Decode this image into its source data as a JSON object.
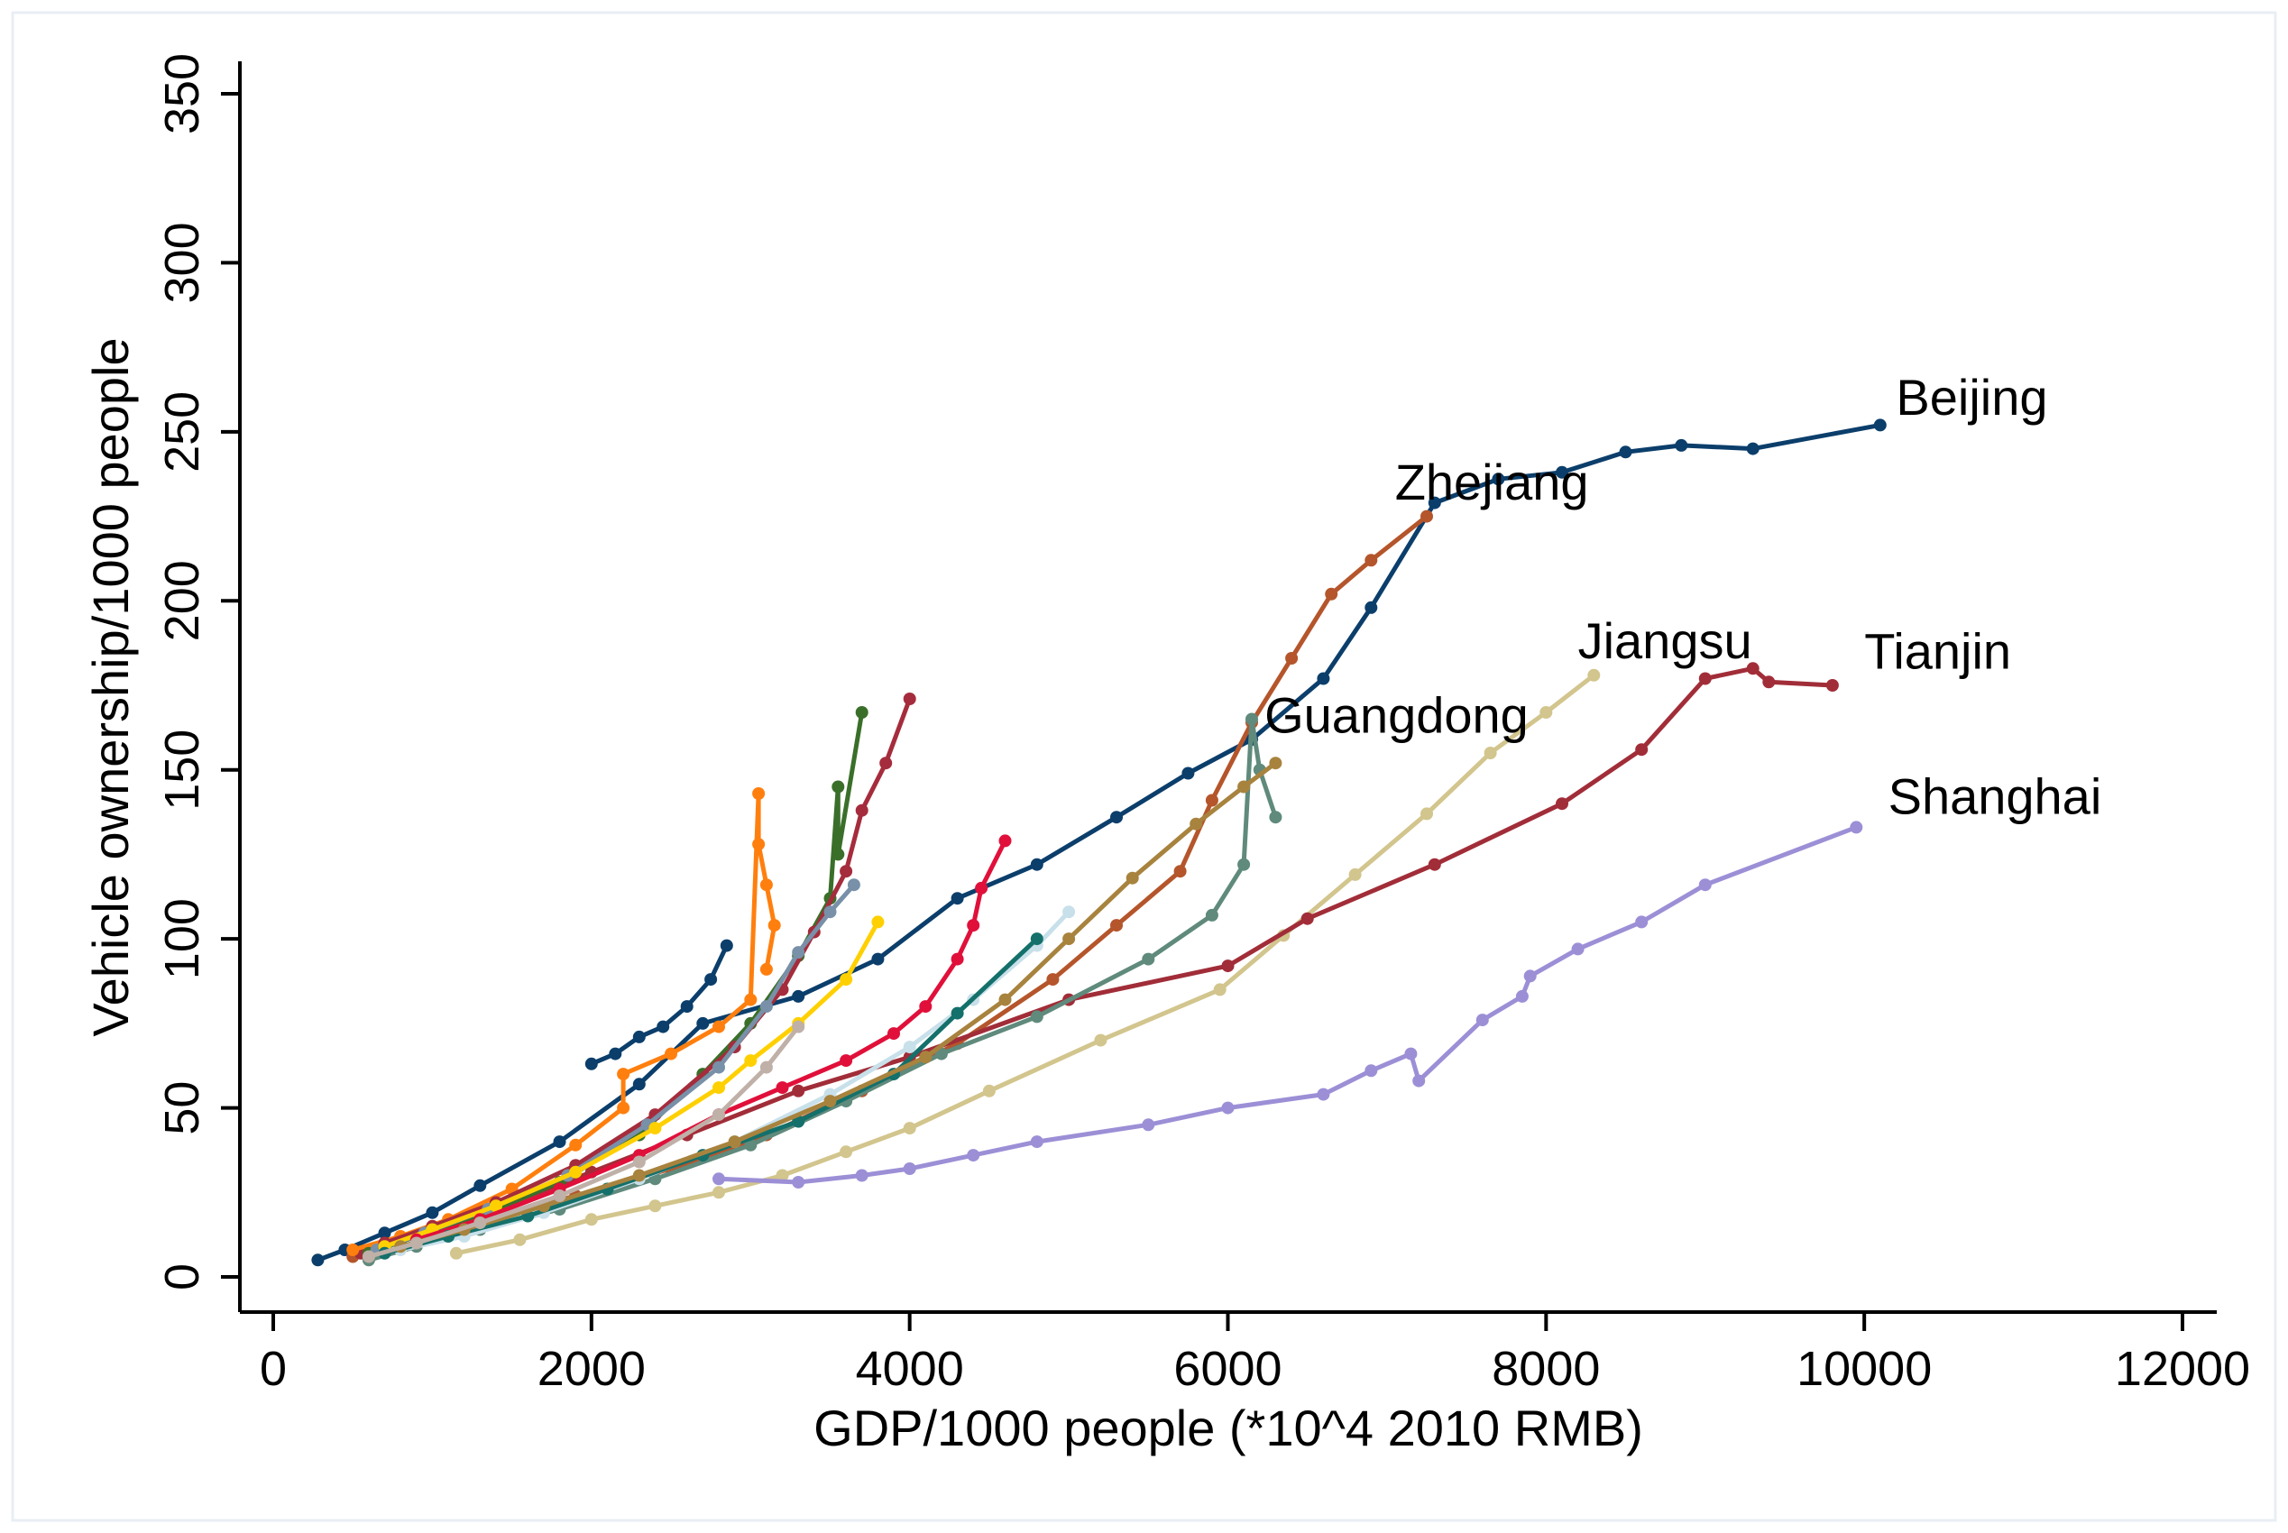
{
  "chart_data": {
    "type": "line",
    "title": "",
    "xlabel": "GDP/1000 people (*10^4 2010 RMB)",
    "ylabel": "Vehicle ownership/1000 people",
    "xlim": [
      0,
      12000
    ],
    "ylim": [
      0,
      350
    ],
    "xticks": [
      "0",
      "2000",
      "4000",
      "6000",
      "8000",
      "10000",
      "12000"
    ],
    "yticks": [
      "0",
      "50",
      "100",
      "150",
      "200",
      "250",
      "300",
      "350"
    ],
    "grid": false,
    "legend": "none",
    "series": [
      {
        "name": "Beijing",
        "color": "#0b3e6b",
        "label_at": [
          10200,
          255
        ],
        "x": [
          280,
          450,
          700,
          1000,
          1300,
          1800,
          2300,
          2700,
          3300,
          3800,
          4300,
          4800,
          5300,
          5750,
          6150,
          6600,
          6900,
          7300,
          7700,
          8100,
          8500,
          8850,
          9300,
          10100
        ],
        "y": [
          5,
          8,
          13,
          19,
          27,
          40,
          57,
          75,
          83,
          94,
          112,
          122,
          136,
          149,
          159,
          177,
          198,
          229,
          236,
          238,
          244,
          246,
          245,
          252
        ]
      },
      {
        "name": "Zhejiang",
        "color": "#b5552b",
        "label_at": [
          7050,
          230
        ],
        "x": [
          500,
          700,
          1000,
          1400,
          1900,
          2500,
          3100,
          3700,
          4300,
          4900,
          5300,
          5700,
          5900,
          6150,
          6400,
          6650,
          6900,
          7250
        ],
        "y": [
          6,
          10,
          14,
          18,
          24,
          32,
          42,
          55,
          69,
          88,
          104,
          120,
          141,
          164,
          183,
          202,
          212,
          225
        ]
      },
      {
        "name": "Jiangsu",
        "color": "#d2c58d",
        "label_at": [
          8200,
          183
        ],
        "x": [
          1150,
          1550,
          2000,
          2400,
          2800,
          3200,
          3600,
          4000,
          4500,
          5200,
          5950,
          6350,
          6800,
          7250,
          7650,
          8000,
          8300
        ],
        "y": [
          7,
          11,
          17,
          21,
          25,
          30,
          37,
          44,
          55,
          70,
          85,
          101,
          119,
          137,
          155,
          167,
          178
        ]
      },
      {
        "name": "Tianjin",
        "color": "#a12d38",
        "label_at": [
          10000,
          180
        ],
        "x": [
          550,
          800,
          1100,
          1500,
          2000,
          2600,
          3300,
          4000,
          5000,
          6000,
          6500,
          7300,
          8100,
          8600,
          9000,
          9300,
          9400,
          9800
        ],
        "y": [
          7,
          11,
          16,
          22,
          31,
          42,
          55,
          65,
          82,
          92,
          106,
          122,
          140,
          156,
          177,
          180,
          176,
          175
        ]
      },
      {
        "name": "Guangdong",
        "color": "#5f8a7c",
        "label_at": [
          6230,
          161
        ],
        "x": [
          600,
          900,
          1300,
          1800,
          2400,
          3000,
          3600,
          4200,
          4800,
          5500,
          5900,
          6100,
          6150,
          6200,
          6300
        ],
        "y": [
          5,
          9,
          14,
          20,
          29,
          39,
          52,
          66,
          77,
          94,
          107,
          122,
          165,
          150,
          136
        ]
      },
      {
        "name": "Shanghai",
        "color": "#9c8fd6",
        "label_at": [
          10150,
          137
        ],
        "x": [
          2800,
          3300,
          3700,
          4000,
          4400,
          4800,
          5500,
          6000,
          6600,
          6900,
          7150,
          7200,
          7600,
          7850,
          7900,
          8200,
          8600,
          9000,
          9950
        ],
        "y": [
          29,
          28,
          30,
          32,
          36,
          40,
          45,
          50,
          54,
          61,
          66,
          58,
          76,
          83,
          89,
          97,
          105,
          116,
          133
        ]
      },
      {
        "name": "",
        "color": "#0b3e6b",
        "x": [
          2000,
          2150,
          2300,
          2450,
          2600,
          2750,
          2850
        ],
        "y": [
          63,
          66,
          71,
          74,
          80,
          88,
          98
        ]
      },
      {
        "name": "",
        "color": "#ff7f0e",
        "x": [
          500,
          800,
          1100,
          1500,
          1900,
          2200,
          2200,
          2500,
          2800,
          3000,
          3050,
          3050,
          3100,
          3150,
          3100
        ],
        "y": [
          8,
          12,
          17,
          26,
          39,
          50,
          60,
          66,
          74,
          82,
          143,
          128,
          116,
          104,
          91
        ]
      },
      {
        "name": "",
        "color": "#3a6f2a",
        "x": [
          600,
          900,
          1300,
          1800,
          2300,
          2700,
          3000,
          3300,
          3500,
          3550,
          3550,
          3700
        ],
        "y": [
          7,
          12,
          18,
          28,
          42,
          60,
          75,
          95,
          112,
          145,
          125,
          167
        ]
      },
      {
        "name": "",
        "color": "#a52c3c",
        "x": [
          700,
          1000,
          1400,
          1900,
          2400,
          2900,
          3200,
          3400,
          3600,
          3700,
          3850,
          4000
        ],
        "y": [
          10,
          15,
          22,
          33,
          48,
          68,
          85,
          102,
          120,
          138,
          152,
          171
        ]
      },
      {
        "name": "",
        "color": "#7890a8",
        "x": [
          650,
          950,
          1350,
          1850,
          2350,
          2800,
          3100,
          3300,
          3500,
          3650
        ],
        "y": [
          8,
          13,
          20,
          30,
          45,
          62,
          80,
          96,
          108,
          116
        ]
      },
      {
        "name": "",
        "color": "#ffd000",
        "x": [
          700,
          1000,
          1400,
          1900,
          2400,
          2800,
          3000,
          3300,
          3600,
          3800
        ],
        "y": [
          9,
          14,
          21,
          31,
          44,
          56,
          64,
          75,
          88,
          105
        ]
      },
      {
        "name": "",
        "color": "#e0103a",
        "x": [
          900,
          1300,
          1800,
          2300,
          2800,
          3200,
          3600,
          3900,
          4100,
          4300,
          4400,
          4450,
          4600
        ],
        "y": [
          11,
          17,
          26,
          36,
          48,
          56,
          64,
          72,
          80,
          94,
          104,
          115,
          129
        ]
      },
      {
        "name": "",
        "color": "#c8e0ea",
        "x": [
          800,
          1200,
          1700,
          2300,
          2900,
          3500,
          4000,
          4400,
          4800,
          5000
        ],
        "y": [
          8,
          12,
          19,
          29,
          40,
          54,
          68,
          82,
          98,
          108
        ]
      },
      {
        "name": "",
        "color": "#14706b",
        "x": [
          700,
          1100,
          1600,
          2100,
          2700,
          3300,
          3900,
          4300,
          4800
        ],
        "y": [
          7,
          12,
          18,
          26,
          36,
          46,
          60,
          78,
          100
        ]
      },
      {
        "name": "",
        "color": "#a8833e",
        "x": [
          800,
          1200,
          1700,
          2300,
          2900,
          3500,
          4100,
          4600,
          5000,
          5400,
          5800,
          6100,
          6300
        ],
        "y": [
          9,
          14,
          21,
          30,
          40,
          52,
          65,
          82,
          100,
          118,
          134,
          145,
          152
        ]
      },
      {
        "name": "",
        "color": "#bfb0a8",
        "x": [
          600,
          900,
          1300,
          1800,
          2300,
          2800,
          3100,
          3300
        ],
        "y": [
          6,
          10,
          16,
          24,
          34,
          48,
          62,
          74
        ]
      }
    ]
  }
}
